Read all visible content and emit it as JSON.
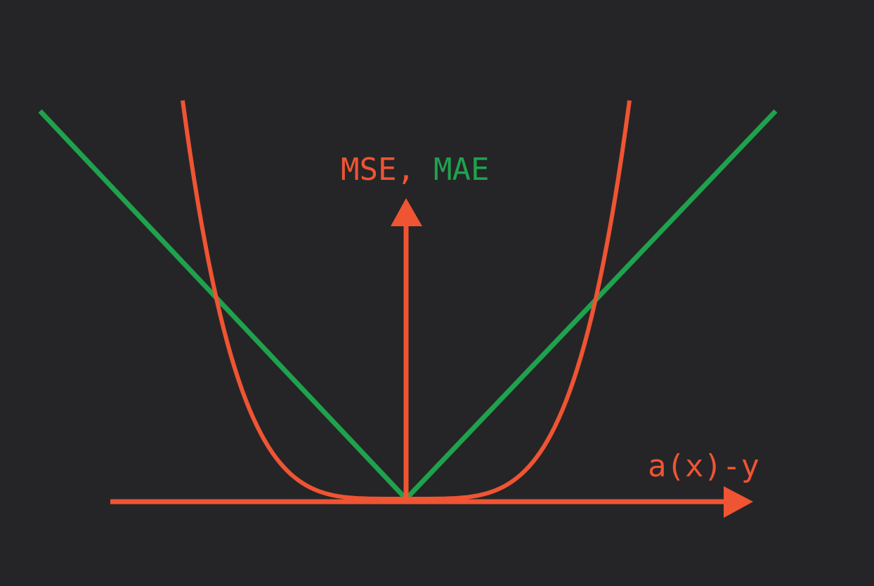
{
  "colors": {
    "background": "#252527",
    "mse": "#ef5433",
    "mae": "#1fa24d",
    "axes": "#ef5433"
  },
  "labels": {
    "y_axis_mse": "MSE",
    "y_axis_sep": ",",
    "y_axis_mae": "MAE",
    "x_axis": "a(x)-y"
  },
  "curves": {
    "mse": "quadratic",
    "mae": "absolute"
  }
}
